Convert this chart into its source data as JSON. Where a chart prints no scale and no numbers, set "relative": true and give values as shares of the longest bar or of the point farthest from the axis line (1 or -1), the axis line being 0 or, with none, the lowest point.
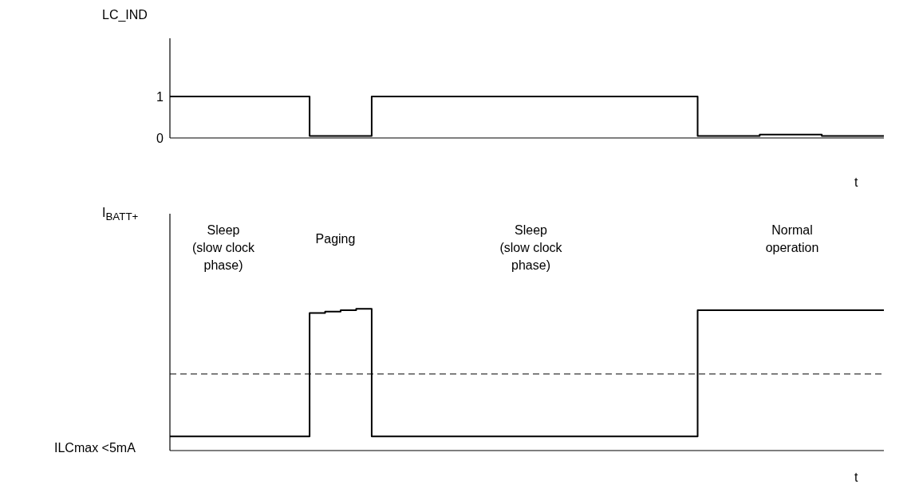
{
  "chart_data": [
    {
      "type": "step",
      "ylabel": "LC_IND",
      "xlabel": "t",
      "categories": [
        null,
        null,
        null,
        null,
        null,
        null,
        null,
        null,
        null,
        null,
        null,
        null,
        null,
        null,
        null,
        null,
        null,
        null,
        null,
        null,
        null,
        null,
        null,
        null,
        null,
        null,
        null,
        null,
        null,
        null,
        null,
        null,
        null,
        null,
        null,
        null,
        null,
        null,
        null,
        null,
        null,
        null,
        null,
        null,
        null,
        null,
        null
      ],
      "series": [
        {
          "color": "#000000",
          "values": [
            1,
            1,
            1,
            1,
            1,
            1,
            1,
            1,
            1,
            0.05,
            0.05,
            0.05,
            0.05,
            1,
            1,
            1,
            1,
            1,
            1,
            1,
            1,
            1,
            1,
            1,
            1,
            1,
            1,
            1,
            1,
            1,
            1,
            1,
            1,
            1,
            0.05,
            0.05,
            0.05,
            0.05,
            0.08,
            0.08,
            0.08,
            0.08,
            0.05,
            0.05,
            0.05,
            0.05,
            0.05
          ]
        }
      ],
      "ylim": [
        0,
        2.4
      ],
      "yticks": [
        0,
        1
      ],
      "tick_labels": "y",
      "grid": false,
      "legend": false
    },
    {
      "type": "step",
      "relative": true,
      "ylabel": "I$_{BATT+}$",
      "xlabel": "t",
      "categories": [
        null,
        null,
        null,
        null,
        null,
        null,
        null,
        null,
        null,
        null,
        null,
        null,
        null,
        null,
        null,
        null,
        null,
        null,
        null,
        null,
        null,
        null,
        null,
        null,
        null,
        null,
        null,
        null,
        null,
        null,
        null,
        null,
        null,
        null,
        null,
        null,
        null,
        null,
        null,
        null,
        null,
        null,
        null,
        null,
        null,
        null,
        null
      ],
      "series": [
        {
          "color": "#000000",
          "values": [
            0.1,
            0.1,
            0.1,
            0.1,
            0.1,
            0.1,
            0.1,
            0.1,
            0.1,
            0.97,
            0.98,
            0.99,
            1,
            0.1,
            0.1,
            0.1,
            0.1,
            0.1,
            0.1,
            0.1,
            0.1,
            0.1,
            0.1,
            0.1,
            0.1,
            0.1,
            0.1,
            0.1,
            0.1,
            0.1,
            0.1,
            0.1,
            0.1,
            0.1,
            0.99,
            0.99,
            0.99,
            0.99,
            0.99,
            0.99,
            0.99,
            0.99,
            0.99,
            0.99,
            0.99,
            0.99,
            0.99
          ]
        }
      ],
      "ref_lines": [
        {
          "axis": "y",
          "value": 0.54,
          "line_style": "dashed",
          "color": "#000000"
        }
      ],
      "annotations": [
        "Sleep\n(slow clock\nphase)",
        "Paging",
        "Sleep\n(slow clock\nphase)",
        "Normal\noperation",
        "ILCmax <5mA"
      ],
      "tick_labels": false,
      "grid": false,
      "legend": false
    }
  ]
}
